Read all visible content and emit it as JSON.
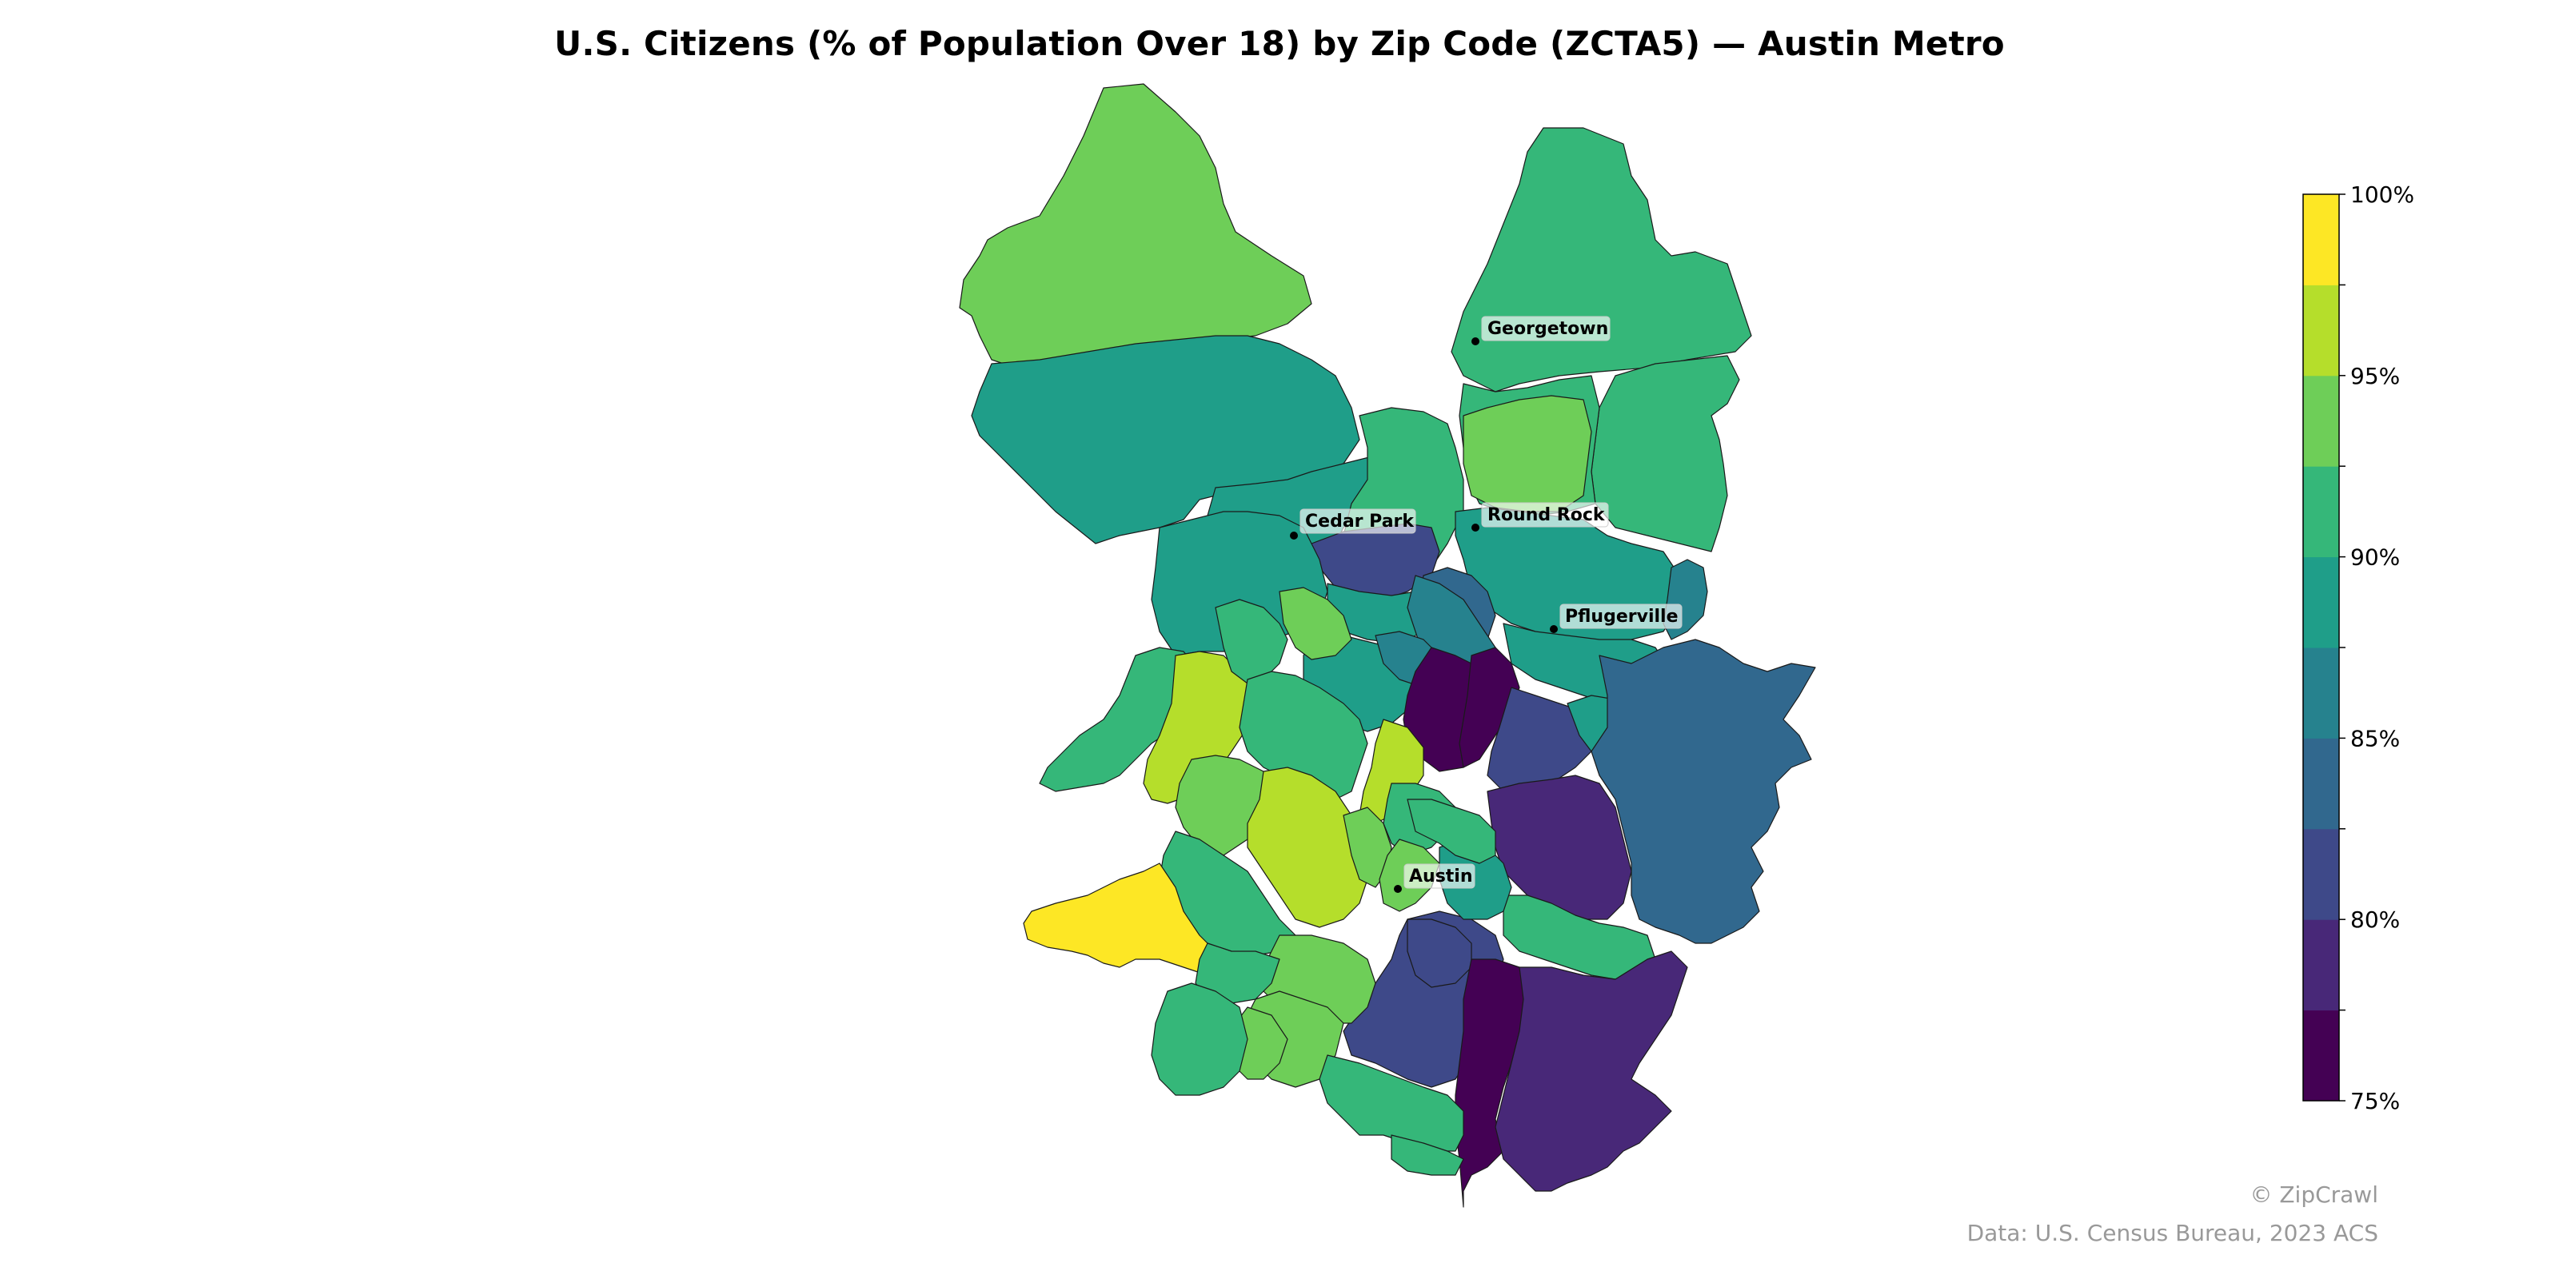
{
  "title": "U.S. Citizens (% of Population Over 18) by Zip Code (ZCTA5) — Austin Metro",
  "credit": "© ZipCrawl",
  "source": "Data: U.S. Census Bureau, 2023 ACS",
  "colorbar": {
    "min": 75,
    "max": 100,
    "step": 2.5,
    "tick_labels": [
      "100%",
      "95%",
      "90%",
      "85%",
      "80%",
      "75%"
    ],
    "colors": [
      "#440154",
      "#482878",
      "#3e4989",
      "#31688e",
      "#26828e",
      "#1f9e89",
      "#35b779",
      "#6ece58",
      "#b5de2b",
      "#fde725"
    ]
  },
  "cities": [
    {
      "name": "Georgetown"
    },
    {
      "name": "Round Rock"
    },
    {
      "name": "Cedar Park"
    },
    {
      "name": "Pflugerville"
    },
    {
      "name": "Austin"
    }
  ],
  "zones": [
    {
      "pct": 93
    },
    {
      "pct": 92
    },
    {
      "pct": 91
    },
    {
      "pct": 89
    },
    {
      "pct": 89
    },
    {
      "pct": 91
    },
    {
      "pct": 91
    },
    {
      "pct": 93
    },
    {
      "pct": 89
    },
    {
      "pct": 87
    },
    {
      "pct": 80
    },
    {
      "pct": 89
    },
    {
      "pct": 89
    },
    {
      "pct": 89
    },
    {
      "pct": 84
    },
    {
      "pct": 89
    },
    {
      "pct": 86
    },
    {
      "pct": 86
    },
    {
      "pct": 76
    },
    {
      "pct": 76
    },
    {
      "pct": 81
    },
    {
      "pct": 89
    },
    {
      "pct": 91
    },
    {
      "pct": 96
    },
    {
      "pct": 91
    },
    {
      "pct": 93
    },
    {
      "pct": 96
    },
    {
      "pct": 91
    },
    {
      "pct": 93
    },
    {
      "pct": 96
    },
    {
      "pct": 91
    },
    {
      "pct": 93
    },
    {
      "pct": 91
    },
    {
      "pct": 79
    },
    {
      "pct": 84
    },
    {
      "pct": 91
    },
    {
      "pct": 93
    },
    {
      "pct": 81
    },
    {
      "pct": 89
    },
    {
      "pct": 91
    },
    {
      "pct": 93
    },
    {
      "pct": 99
    },
    {
      "pct": 91
    },
    {
      "pct": 93
    },
    {
      "pct": 93
    },
    {
      "pct": 91
    },
    {
      "pct": 81
    },
    {
      "pct": 76
    },
    {
      "pct": 79
    },
    {
      "pct": 91
    },
    {
      "pct": 91
    }
  ]
}
